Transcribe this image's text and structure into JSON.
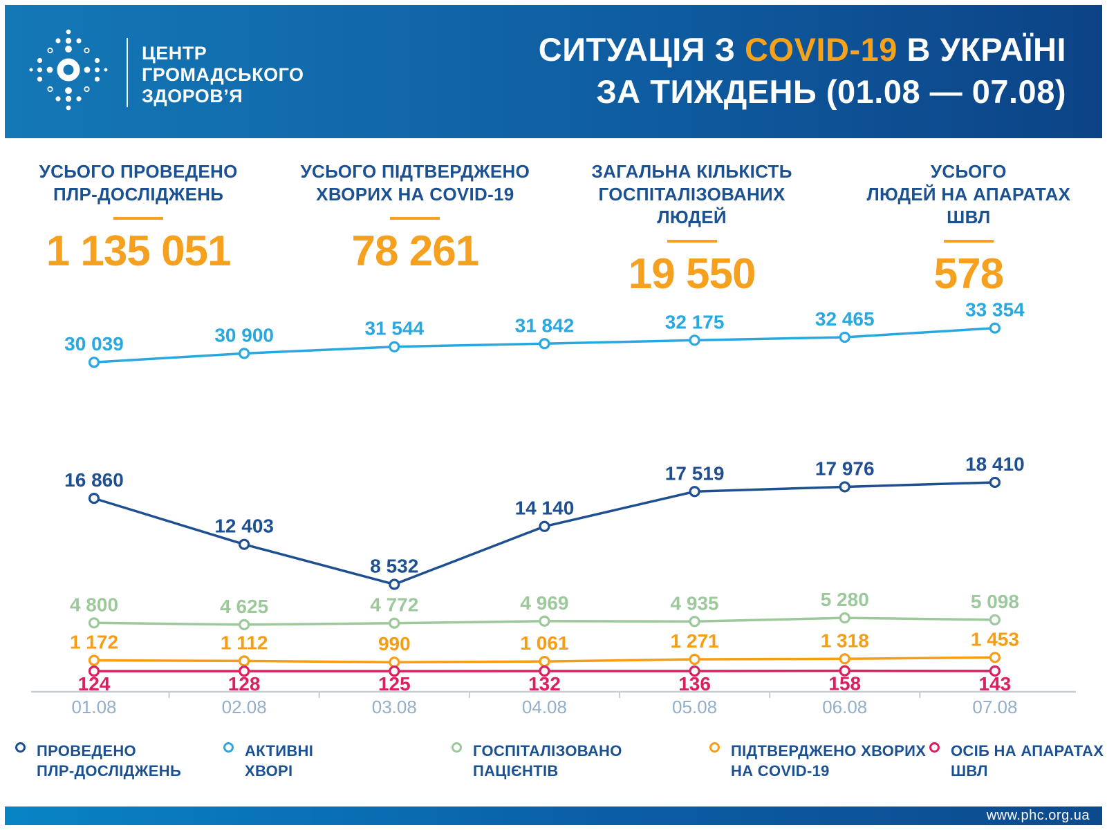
{
  "header": {
    "logo_line1": "ЦЕНТР",
    "logo_line2": "ГРОМАДСЬКОГО",
    "logo_line3": "ЗДОРОВ’Я",
    "title_line1_pre": "СИТУАЦІЯ З ",
    "title_line1_highlight": "COVID-19",
    "title_line1_post": " В УКРАЇНІ",
    "title_line2": "ЗА ТИЖДЕНЬ (01.08 — 07.08)"
  },
  "stats": [
    {
      "label_line1": "УСЬОГО ПРОВЕДЕНО",
      "label_line2": "ПЛР-ДОСЛІДЖЕНЬ",
      "value": "1 135 051"
    },
    {
      "label_line1": "УСЬОГО ПІДТВЕРДЖЕНО",
      "label_line2": "ХВОРИХ НА COVID-19",
      "value": "78 261"
    },
    {
      "label_line1": "ЗАГАЛЬНА КІЛЬКІСТЬ",
      "label_line2": "ГОСПІТАЛІЗОВАНИХ ЛЮДЕЙ",
      "value": "19 550"
    },
    {
      "label_line1": "УСЬОГО",
      "label_line2": "ЛЮДЕЙ НА АПАРАТАХ ШВЛ",
      "value": "578"
    }
  ],
  "chart_data": {
    "type": "line",
    "categories": [
      "01.08",
      "02.08",
      "03.08",
      "04.08",
      "05.08",
      "06.08",
      "07.08"
    ],
    "series": [
      {
        "name": "АКТИВНІ ХВОРІ",
        "color": "#29a8e0",
        "values": [
          30039,
          30900,
          31544,
          31842,
          32175,
          32465,
          33354
        ],
        "label_position": "above"
      },
      {
        "name": "ПРОВЕДЕНО ПЛР-ДОСЛІДЖЕНЬ",
        "color": "#1e4f91",
        "values": [
          16860,
          12403,
          8532,
          14140,
          17519,
          17976,
          18410
        ],
        "label_position": "above"
      },
      {
        "name": "ГОСПІТАЛІЗОВАНО ПАЦІЄНТІВ",
        "color": "#9dc89c",
        "values": [
          4800,
          4625,
          4772,
          4969,
          4935,
          5280,
          5098
        ],
        "label_position": "above"
      },
      {
        "name": "ПІДТВЕРДЖЕНО ХВОРИХ НА COVID-19",
        "color": "#f59e15",
        "values": [
          1172,
          1112,
          990,
          1061,
          1271,
          1318,
          1453
        ],
        "label_position": "above"
      },
      {
        "name": "ОСІБ НА АПАРАТАХ ШВЛ",
        "color": "#d9215f",
        "values": [
          124,
          128,
          125,
          132,
          136,
          158,
          143
        ],
        "label_position": "below"
      }
    ],
    "title": "СИТУАЦІЯ З COVID-19 В УКРАЇНІ ЗА ТИЖДЕНЬ (01.08 — 07.08)",
    "xlabel": "",
    "ylabel": "",
    "ylim": [
      0,
      36000
    ],
    "grid": false,
    "legend_position": "bottom",
    "data_labels": true,
    "thousands_separator": "space"
  },
  "legend": [
    {
      "line1": "ПРОВЕДЕНО",
      "line2": "ПЛР-ДОСЛІДЖЕНЬ",
      "color": "#1e4f91"
    },
    {
      "line1": "АКТИВНІ",
      "line2": "ХВОРІ",
      "color": "#29a8e0"
    },
    {
      "line1": "ГОСПІТАЛІЗОВАНО",
      "line2": "ПАЦІЄНТІВ",
      "color": "#9dc89c"
    },
    {
      "line1": "ПІДТВЕРДЖЕНО ХВОРИХ",
      "line2": "НА COVID-19",
      "color": "#f59e15"
    },
    {
      "line1": "ОСІБ НА АПАРАТАХ",
      "line2": "ШВЛ",
      "color": "#d9215f"
    }
  ],
  "colors": {
    "accent_orange": "#f5a01e",
    "heading_navy": "#1c5191",
    "axis_gray": "#c8ccd2",
    "axis_label": "#93aec9",
    "header_gradient_start": "#1478b6",
    "header_gradient_end": "#0c4386"
  },
  "footer": {
    "url": "www.phc.org.ua"
  }
}
